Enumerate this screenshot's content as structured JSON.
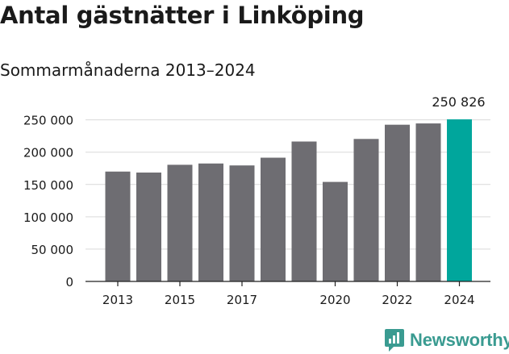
{
  "header": {
    "title": "Antal gästnätter i Linköping",
    "subtitle": "Sommarmånaderna 2013–2024"
  },
  "brand": {
    "name": "Newsworthy",
    "color": "#3a9b91",
    "icon": "newsworthy-logo-icon"
  },
  "colors": {
    "bar": "#6e6d72",
    "highlight": "#00a69c",
    "grid": "#d9d9d9",
    "text": "#1a1a1a"
  },
  "chart_data": {
    "type": "bar",
    "title": "Antal gästnätter i Linköping",
    "subtitle": "Sommarmånaderna 2013–2024",
    "categories": [
      "2013",
      "2014",
      "2015",
      "2016",
      "2017",
      "2018",
      "2019",
      "2020",
      "2021",
      "2022",
      "2023",
      "2024"
    ],
    "values": [
      170000,
      168500,
      180500,
      182500,
      179500,
      191500,
      216500,
      154000,
      220500,
      242500,
      244500,
      250826
    ],
    "highlight_index": 11,
    "highlight_label": "250 826",
    "x_tick_labels": [
      "2013",
      "2015",
      "2017",
      "2020",
      "2022",
      "2024"
    ],
    "y_ticks": [
      0,
      50000,
      100000,
      150000,
      200000,
      250000
    ],
    "y_tick_labels": [
      "0",
      "50 000",
      "100 000",
      "150 000",
      "200 000",
      "250 000"
    ],
    "ylim": [
      0,
      250826
    ],
    "xlabel": "",
    "ylabel": "",
    "grid": true,
    "legend": "none"
  }
}
